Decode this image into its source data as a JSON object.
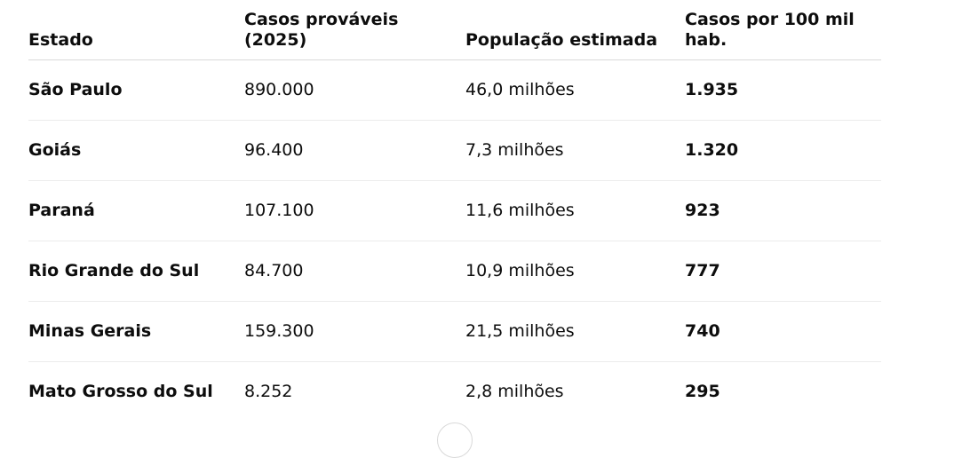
{
  "table": {
    "headers": [
      "Estado",
      "Casos prováveis\n(2025)",
      "População estimada",
      "Casos por 100 mil hab."
    ],
    "header_line1": "Casos prováveis",
    "header_line2": "(2025)",
    "rows": [
      {
        "estado": "São Paulo",
        "casos": "890.000",
        "populacao": "46,0 milhões",
        "taxa": "1.935"
      },
      {
        "estado": "Goiás",
        "casos": "96.400",
        "populacao": "7,3 milhões",
        "taxa": "1.320"
      },
      {
        "estado": "Paraná",
        "casos": "107.100",
        "populacao": "11,6 milhões",
        "taxa": "923"
      },
      {
        "estado": "Rio Grande do Sul",
        "casos": "84.700",
        "populacao": "10,9 milhões",
        "taxa": "777"
      },
      {
        "estado": "Minas Gerais",
        "casos": "159.300",
        "populacao": "21,5 milhões",
        "taxa": "740"
      },
      {
        "estado": "Mato Grosso do Sul",
        "casos": "8.252",
        "populacao": "2,8 milhões",
        "taxa": "295"
      }
    ]
  }
}
